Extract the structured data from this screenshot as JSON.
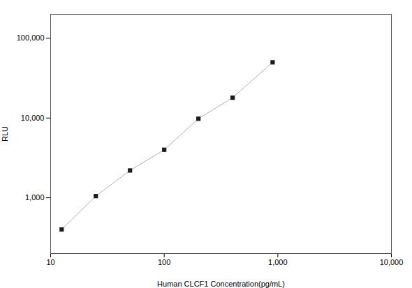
{
  "chart_data": {
    "type": "line",
    "xlabel": "Human CLCF1 Concentration(pg/mL)",
    "ylabel": "RLU",
    "x": [
      12.5,
      25,
      50,
      100,
      200,
      400,
      900
    ],
    "values": [
      400,
      1050,
      2200,
      4000,
      9800,
      18000,
      50000
    ],
    "color": "#b0b0b0",
    "marker": "square",
    "line_style": "solid",
    "log": true,
    "grid": false,
    "xlim": [
      10,
      10000
    ],
    "ylim": [
      200,
      200000
    ],
    "xticks": [
      10,
      100,
      {
        "value": 1000,
        "label": "1,000"
      },
      {
        "value": 10000,
        "label": "10,000"
      }
    ],
    "yticks": [
      {
        "value": 1000,
        "label": "1,000"
      },
      {
        "value": 10000,
        "label": "10,000"
      },
      {
        "value": 100000,
        "label": "100,000"
      }
    ]
  }
}
